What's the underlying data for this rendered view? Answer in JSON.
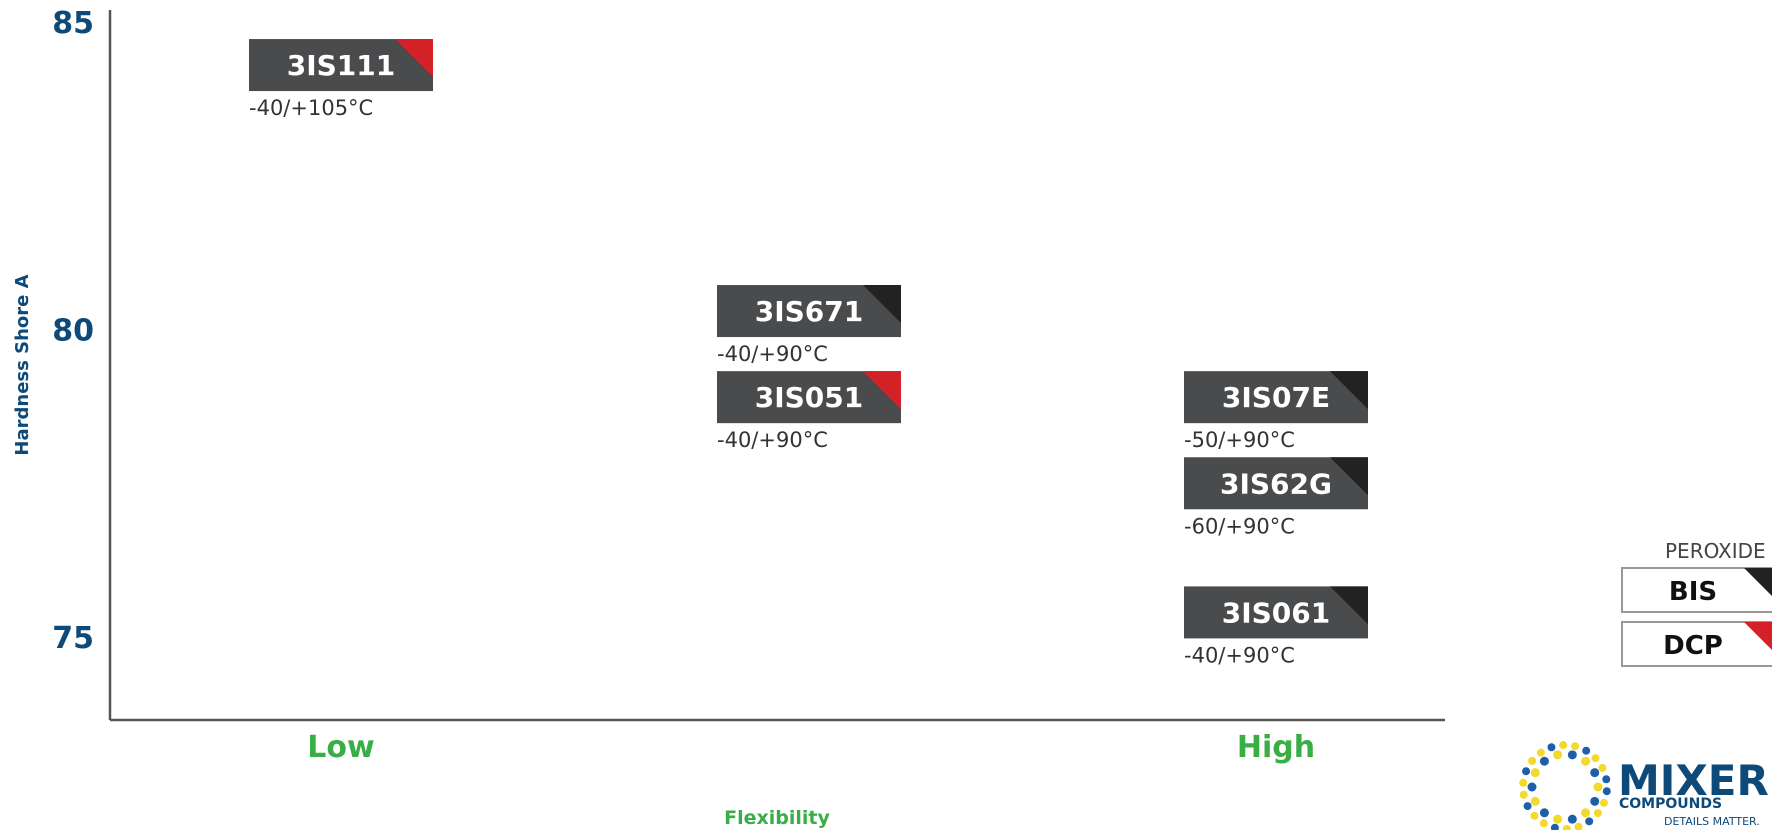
{
  "chart_data": {
    "type": "scatter",
    "title": "",
    "xlabel": "Flexibility",
    "ylabel": "Hardness Shore A",
    "x_ticks": [
      "Low",
      "High"
    ],
    "y_ticks": [
      75,
      80,
      85
    ],
    "ylim": [
      73.7,
      85.3
    ],
    "grid": false,
    "points": [
      {
        "name": "3IS111",
        "flexibility": "Low",
        "hardness": 84.3,
        "temp": "-40/+105°C",
        "peroxide": "DCP"
      },
      {
        "name": "3IS671",
        "flexibility": "Medium",
        "hardness": 80.3,
        "temp": "-40/+90°C",
        "peroxide": "BIS"
      },
      {
        "name": "3IS051",
        "flexibility": "Medium",
        "hardness": 78.9,
        "temp": "-40/+90°C",
        "peroxide": "DCP"
      },
      {
        "name": "3IS07E",
        "flexibility": "High",
        "hardness": 78.9,
        "temp": "-50/+90°C",
        "peroxide": "BIS"
      },
      {
        "name": "3IS62G",
        "flexibility": "High",
        "hardness": 77.5,
        "temp": "-60/+90°C",
        "peroxide": "BIS"
      },
      {
        "name": "3IS061",
        "flexibility": "High",
        "hardness": 75.4,
        "temp": "-40/+90°C",
        "peroxide": "BIS"
      }
    ],
    "legend": {
      "title": "PEROXIDE",
      "position": "right",
      "items": [
        {
          "label": "BIS",
          "color": "#222222"
        },
        {
          "label": "DCP",
          "color": "#d42027"
        }
      ]
    }
  },
  "colors": {
    "box": "#4a4b4d",
    "axis": "#555555",
    "y_text": "#0d4a7a",
    "x_text": "#3aae46"
  },
  "logo": {
    "line1": "MIXER",
    "line2": "COMPOUNDS",
    "tagline": "DETAILS MATTER."
  }
}
